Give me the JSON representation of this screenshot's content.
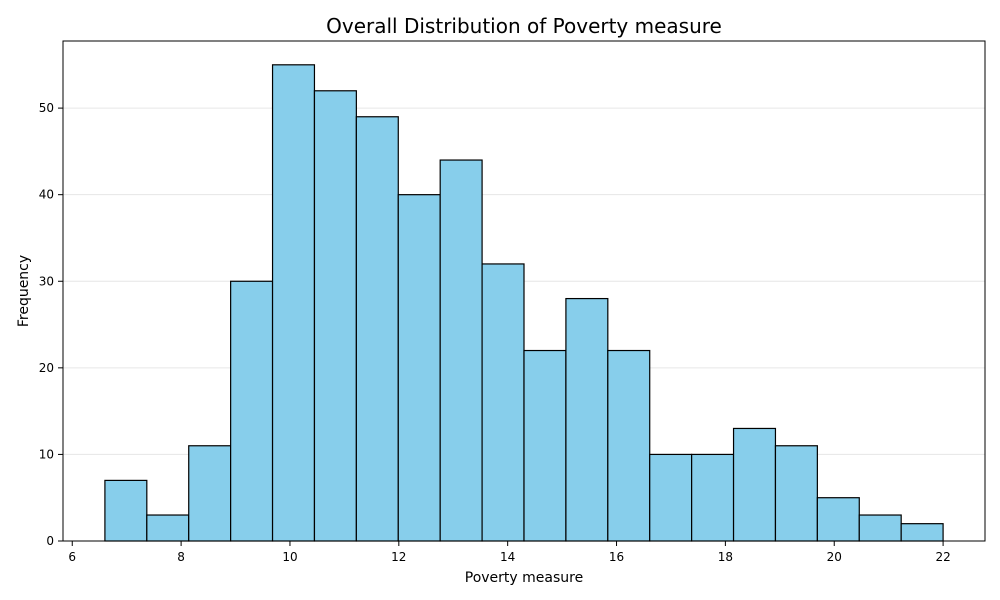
{
  "chart_data": {
    "type": "bar",
    "title": "Overall Distribution of Poverty measure",
    "xlabel": "Poverty measure",
    "ylabel": "Frequency",
    "bin_edges": [
      6.6,
      7.37,
      8.14,
      8.91,
      9.68,
      10.45,
      11.22,
      11.99,
      12.76,
      13.53,
      14.3,
      15.07,
      15.84,
      16.61,
      17.38,
      18.15,
      18.92,
      19.69,
      20.46,
      21.23,
      22.0
    ],
    "values": [
      7,
      3,
      11,
      30,
      55,
      52,
      49,
      40,
      44,
      32,
      22,
      28,
      22,
      10,
      10,
      13,
      11,
      5,
      3,
      2
    ],
    "xlim": [
      5.83,
      22.77
    ],
    "ylim": [
      0,
      57.75
    ],
    "xticks": [
      6,
      8,
      10,
      12,
      14,
      16,
      18,
      20,
      22
    ],
    "yticks": [
      0,
      10,
      20,
      30,
      40,
      50
    ],
    "grid": "y",
    "bar_color": "#87ceeb",
    "edge_color": "#000000"
  }
}
